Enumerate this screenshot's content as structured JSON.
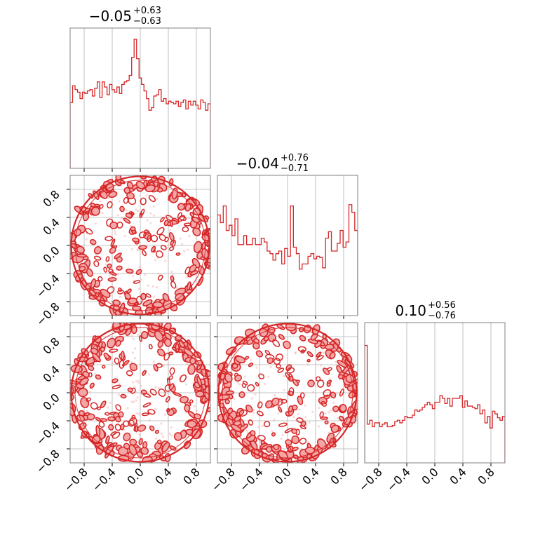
{
  "chart_data": {
    "type": "corner",
    "color": "#d62728",
    "fill_color": "#f4a6a6",
    "grid": true,
    "axis_range": [
      -1,
      1
    ],
    "tick_values": [
      -0.8,
      -0.4,
      0.0,
      0.4,
      0.8
    ],
    "tick_labels": [
      "−0.8",
      "−0.4",
      "0.0",
      "0.4",
      "0.8"
    ],
    "parameters": [
      {
        "title_value": "−0.05",
        "title_plus": "+0.63",
        "title_minus": "−0.63",
        "hist_ylim": [
          0,
          1.0
        ],
        "hist": [
          0.51,
          0.64,
          0.61,
          0.59,
          0.54,
          0.59,
          0.58,
          0.6,
          0.61,
          0.56,
          0.62,
          0.67,
          0.55,
          0.67,
          0.63,
          0.57,
          0.65,
          0.61,
          0.59,
          0.63,
          0.58,
          0.65,
          0.67,
          0.68,
          0.72,
          0.86,
          1.0,
          0.85,
          0.7,
          0.65,
          0.6,
          0.54,
          0.45,
          0.47,
          0.56,
          0.57,
          0.61,
          0.52,
          0.54,
          0.5,
          0.52,
          0.51,
          0.5,
          0.52,
          0.48,
          0.51,
          0.53,
          0.46,
          0.52,
          0.49,
          0.52,
          0.49,
          0.46,
          0.53,
          0.51,
          0.45,
          0.5
        ]
      },
      {
        "title_value": "−0.04",
        "title_plus": "+0.76",
        "title_minus": "−0.71",
        "hist_ylim": [
          0,
          1.0
        ],
        "hist": [
          0.78,
          0.72,
          0.85,
          0.66,
          0.7,
          0.62,
          0.75,
          0.55,
          0.55,
          0.62,
          0.55,
          0.55,
          0.6,
          0.55,
          0.55,
          0.6,
          0.57,
          0.5,
          0.48,
          0.43,
          0.48,
          0.5,
          0.4,
          0.52,
          0.46,
          0.85,
          0.53,
          0.48,
          0.36,
          0.4,
          0.4,
          0.46,
          0.48,
          0.44,
          0.46,
          0.45,
          0.37,
          0.6,
          0.65,
          0.5,
          0.5,
          0.56,
          0.66,
          0.53,
          0.57,
          0.86,
          0.8,
          0.66
        ]
      },
      {
        "title_value": "0.10",
        "title_plus": "+0.56",
        "title_minus": "−0.76",
        "hist_ylim": [
          0,
          1.0
        ],
        "hist": [
          0.91,
          0.3,
          0.33,
          0.28,
          0.31,
          0.31,
          0.28,
          0.3,
          0.31,
          0.28,
          0.28,
          0.29,
          0.32,
          0.33,
          0.31,
          0.33,
          0.36,
          0.35,
          0.35,
          0.37,
          0.41,
          0.4,
          0.41,
          0.43,
          0.45,
          0.47,
          0.45,
          0.42,
          0.47,
          0.47,
          0.52,
          0.5,
          0.46,
          0.5,
          0.44,
          0.5,
          0.5,
          0.5,
          0.52,
          0.43,
          0.48,
          0.44,
          0.44,
          0.43,
          0.42,
          0.45,
          0.38,
          0.41,
          0.31,
          0.36,
          0.27,
          0.4,
          0.38,
          0.35,
          0.33,
          0.36
        ]
      }
    ]
  }
}
